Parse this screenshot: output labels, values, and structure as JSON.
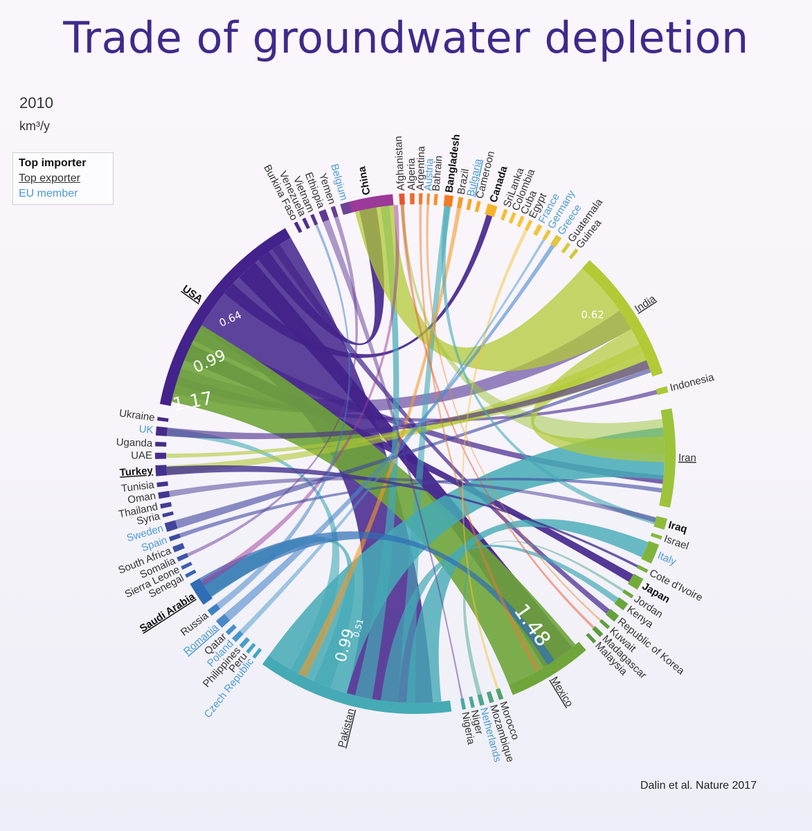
{
  "title": "Trade of groundwater depletion",
  "year": "2010",
  "unit": "km³/y",
  "legend": {
    "top_importer": "Top importer",
    "top_exporter": "Top exporter",
    "eu_member": "EU member"
  },
  "citation": "Dalin et al. Nature 2017",
  "colors": {
    "usa": "#43238b",
    "pakistan": "#45aab5",
    "india": "#b3c936",
    "china": "#9b3a98",
    "mexico": "#6fa53a",
    "eu_label": "#4c9bd3",
    "saudi": "#2f6db4"
  },
  "chart_data": {
    "type": "chord",
    "countries": [
      {
        "name": "China",
        "style": "importer",
        "color": "#9b3a98"
      },
      {
        "name": "Afghanistan",
        "style": "normal",
        "color": "#e8552f"
      },
      {
        "name": "Algeria",
        "style": "normal",
        "color": "#ec6a2f"
      },
      {
        "name": "Argentina",
        "style": "normal",
        "color": "#ee7a2f"
      },
      {
        "name": "Austria",
        "style": "eu",
        "color": "#f08a30"
      },
      {
        "name": "Bahrain",
        "style": "normal",
        "color": "#f1952f"
      },
      {
        "name": "Bangladesh",
        "style": "importer",
        "color": "#f27a22"
      },
      {
        "name": "Brazil",
        "style": "normal",
        "color": "#f39a2c"
      },
      {
        "name": "Bulgaria",
        "style": "eu-exporter",
        "color": "#f4a42c"
      },
      {
        "name": "Cameroon",
        "style": "normal",
        "color": "#f5ad2c"
      },
      {
        "name": "Canada",
        "style": "importer",
        "color": "#f6b42c"
      },
      {
        "name": "SriLanka",
        "style": "normal",
        "color": "#f7bd2f"
      },
      {
        "name": "Colombia",
        "style": "normal",
        "color": "#f7c232"
      },
      {
        "name": "Cuba",
        "style": "normal",
        "color": "#f6c436"
      },
      {
        "name": "Egypt",
        "style": "normal",
        "color": "#f4c43a"
      },
      {
        "name": "France",
        "style": "eu",
        "color": "#efc43c"
      },
      {
        "name": "Germany",
        "style": "eu",
        "color": "#e8c53d"
      },
      {
        "name": "Greece",
        "style": "eu",
        "color": "#e1c63e"
      },
      {
        "name": "Guatemala",
        "style": "normal",
        "color": "#d8c83c"
      },
      {
        "name": "Guinea",
        "style": "normal",
        "color": "#cfc93b"
      },
      {
        "name": "India",
        "style": "exporter",
        "color": "#b3c936"
      },
      {
        "name": "Indonesia",
        "style": "normal",
        "color": "#a9c838"
      },
      {
        "name": "Iran",
        "style": "exporter",
        "color": "#9cc33a"
      },
      {
        "name": "Iraq",
        "style": "importer",
        "color": "#8dbb3b"
      },
      {
        "name": "Israel",
        "style": "normal",
        "color": "#86b83c"
      },
      {
        "name": "Italy",
        "style": "eu",
        "color": "#7fb43c"
      },
      {
        "name": "Cote d'Ivoire",
        "style": "normal",
        "color": "#79b03c"
      },
      {
        "name": "Japan",
        "style": "importer",
        "color": "#73ab3b"
      },
      {
        "name": "Jordan",
        "style": "normal",
        "color": "#6ea83b"
      },
      {
        "name": "Kenya",
        "style": "normal",
        "color": "#69a53b"
      },
      {
        "name": "Republic of Korea",
        "style": "normal",
        "color": "#64a23b"
      },
      {
        "name": "Kuwait",
        "style": "normal",
        "color": "#5f9f3c"
      },
      {
        "name": "Madagascar",
        "style": "normal",
        "color": "#5a9c3c"
      },
      {
        "name": "Malaysia",
        "style": "normal",
        "color": "#56993c"
      },
      {
        "name": "Mexico",
        "style": "exporter",
        "color": "#6fa53a"
      },
      {
        "name": "Morocco",
        "style": "normal",
        "color": "#54a16e"
      },
      {
        "name": "Mozambique",
        "style": "normal",
        "color": "#50a37e"
      },
      {
        "name": "Netherlands",
        "style": "eu",
        "color": "#4ca58e"
      },
      {
        "name": "Niger",
        "style": "normal",
        "color": "#49a79b"
      },
      {
        "name": "Nigeria",
        "style": "normal",
        "color": "#47a8a6"
      },
      {
        "name": "Pakistan",
        "style": "exporter",
        "color": "#45aab5"
      },
      {
        "name": "Czech Republic",
        "style": "eu",
        "color": "#45a8c0"
      },
      {
        "name": "Peru",
        "style": "normal",
        "color": "#46a3c4"
      },
      {
        "name": "Philippines",
        "style": "normal",
        "color": "#479dc7"
      },
      {
        "name": "Poland",
        "style": "eu",
        "color": "#4897c9"
      },
      {
        "name": "Qatar",
        "style": "normal",
        "color": "#4990ca"
      },
      {
        "name": "Romania",
        "style": "eu-exporter",
        "color": "#4a88ca"
      },
      {
        "name": "Russia",
        "style": "normal",
        "color": "#3c80c4"
      },
      {
        "name": "Saudi Arabia",
        "style": "importer-exporter",
        "color": "#2f6db4"
      },
      {
        "name": "Senegal",
        "style": "normal",
        "color": "#3466b0"
      },
      {
        "name": "Sierra Leone",
        "style": "normal",
        "color": "#385fac"
      },
      {
        "name": "Somalia",
        "style": "normal",
        "color": "#3b58a8"
      },
      {
        "name": "South Africa",
        "style": "normal",
        "color": "#3d51a4"
      },
      {
        "name": "Spain",
        "style": "eu",
        "color": "#3f4aa0"
      },
      {
        "name": "Sweden",
        "style": "eu",
        "color": "#40449c"
      },
      {
        "name": "Syria",
        "style": "normal",
        "color": "#413f98"
      },
      {
        "name": "Thailand",
        "style": "normal",
        "color": "#423b95"
      },
      {
        "name": "Oman",
        "style": "normal",
        "color": "#433792"
      },
      {
        "name": "Tunisia",
        "style": "normal",
        "color": "#44348f"
      },
      {
        "name": "Turkey",
        "style": "importer-exporter",
        "color": "#44318d"
      },
      {
        "name": "UAE",
        "style": "normal",
        "color": "#452e8b"
      },
      {
        "name": "Uganda",
        "style": "normal",
        "color": "#462c89"
      },
      {
        "name": "UK",
        "style": "eu",
        "color": "#472a88"
      },
      {
        "name": "Ukraine",
        "style": "normal",
        "color": "#482886"
      },
      {
        "name": "USA",
        "style": "importer-exporter",
        "color": "#43238b"
      },
      {
        "name": "Burkina Faso",
        "style": "normal",
        "color": "#4a2a8c"
      },
      {
        "name": "Venezuela",
        "style": "normal",
        "color": "#512f8e"
      },
      {
        "name": "Vietnam",
        "style": "normal",
        "color": "#583490"
      },
      {
        "name": "Ethiopia",
        "style": "normal",
        "color": "#603993"
      },
      {
        "name": "Yemen",
        "style": "normal",
        "color": "#683e95"
      },
      {
        "name": "Belgium",
        "style": "eu",
        "color": "#6e4297"
      }
    ],
    "value_labels": [
      {
        "text": "0.64",
        "country": "USA"
      },
      {
        "text": "0.99",
        "country": "USA"
      },
      {
        "text": "1.17",
        "country": "USA"
      },
      {
        "text": "0.62",
        "country": "India"
      },
      {
        "text": "1.48",
        "country": "Mexico"
      },
      {
        "text": "0.99",
        "country": "Pakistan"
      },
      {
        "text": "0.51",
        "country": "Pakistan"
      }
    ]
  }
}
